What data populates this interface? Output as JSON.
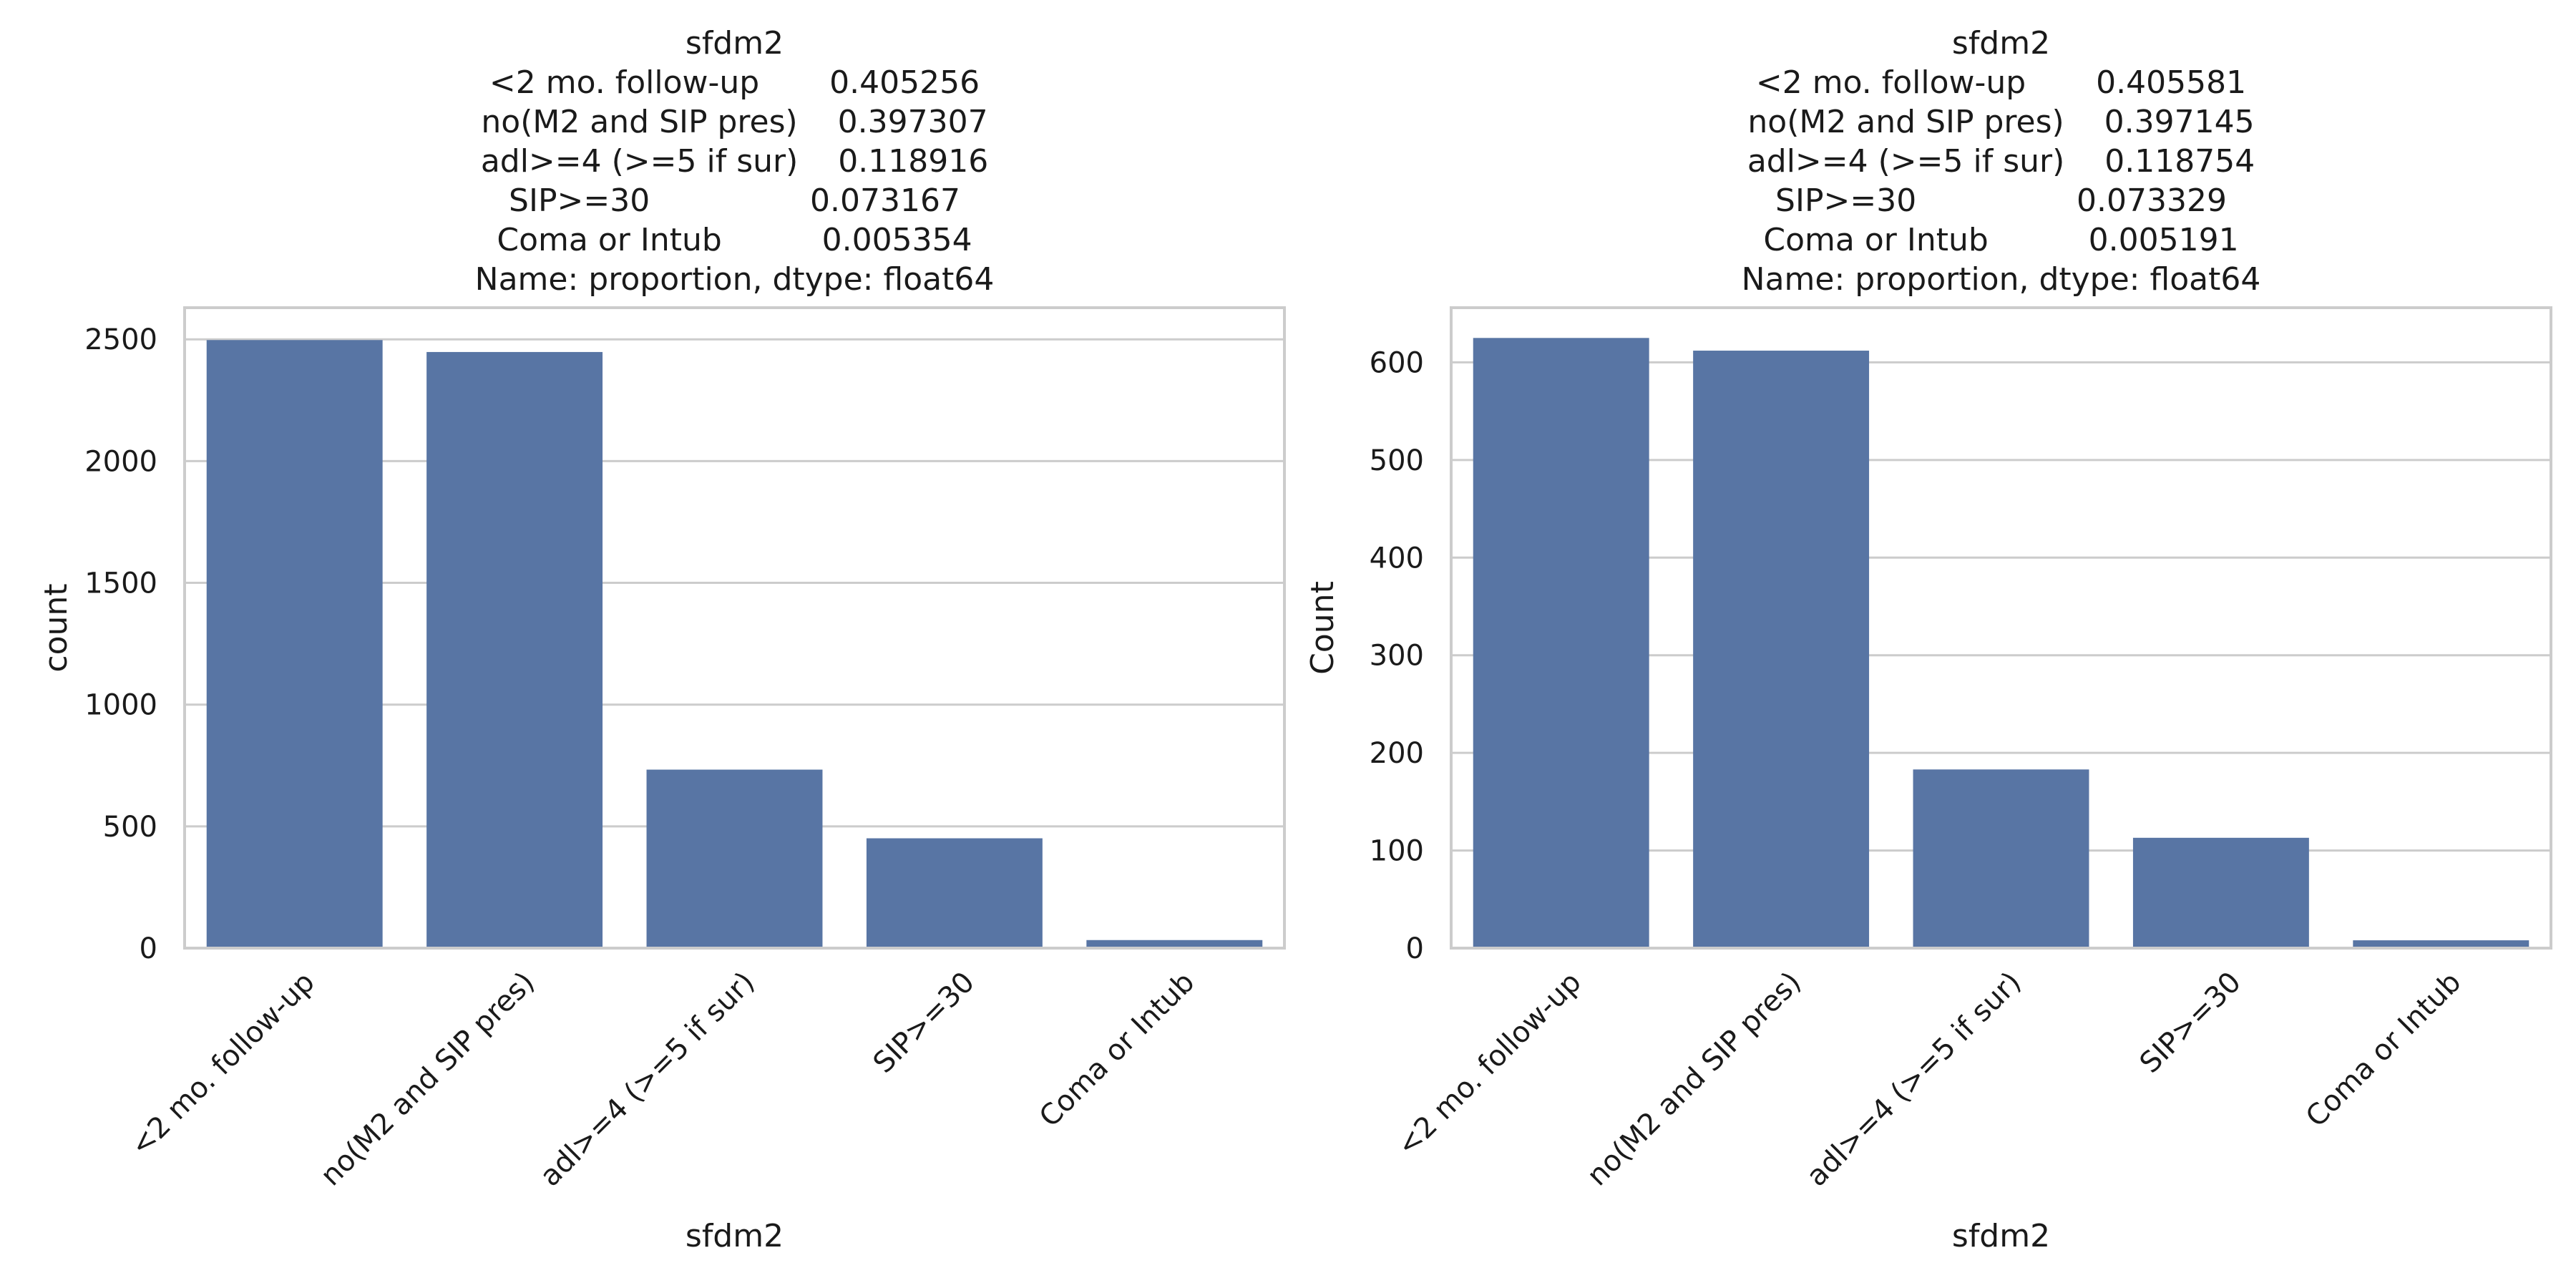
{
  "chart_data": [
    {
      "type": "bar",
      "title_lines": [
        "sfdm2",
        "<2 mo. follow-up       0.405256",
        "no(M2 and SIP pres)    0.397307",
        "adl>=4 (>=5 if sur)    0.118916",
        "SIP>=30                0.073167",
        "Coma or Intub          0.005354",
        "Name: proportion, dtype: float64"
      ],
      "categories": [
        "<2 mo. follow-up",
        "no(M2 and SIP pres)",
        "adl>=4 (>=5 if sur)",
        "SIP>=30",
        "Coma or Intub"
      ],
      "values": [
        2497,
        2448,
        733,
        451,
        33
      ],
      "xlabel": "sfdm2",
      "ylabel": "count",
      "ylim": [
        0,
        2630
      ],
      "yticks": [
        0,
        500,
        1000,
        1500,
        2000,
        2500
      ],
      "grid": true,
      "color": "#5875a4"
    },
    {
      "type": "bar",
      "title_lines": [
        "sfdm2",
        "<2 mo. follow-up       0.405581",
        "no(M2 and SIP pres)    0.397145",
        "adl>=4 (>=5 if sur)    0.118754",
        "SIP>=30                0.073329",
        "Coma or Intub          0.005191",
        "Name: proportion, dtype: float64"
      ],
      "categories": [
        "<2 mo. follow-up",
        "no(M2 and SIP pres)",
        "adl>=4 (>=5 if sur)",
        "SIP>=30",
        "Coma or Intub"
      ],
      "values": [
        625,
        612,
        183,
        113,
        8
      ],
      "xlabel": "sfdm2",
      "ylabel": "Count",
      "ylim": [
        0,
        656
      ],
      "yticks": [
        0,
        100,
        200,
        300,
        400,
        500,
        600
      ],
      "grid": true,
      "color": "#5875a4"
    }
  ]
}
